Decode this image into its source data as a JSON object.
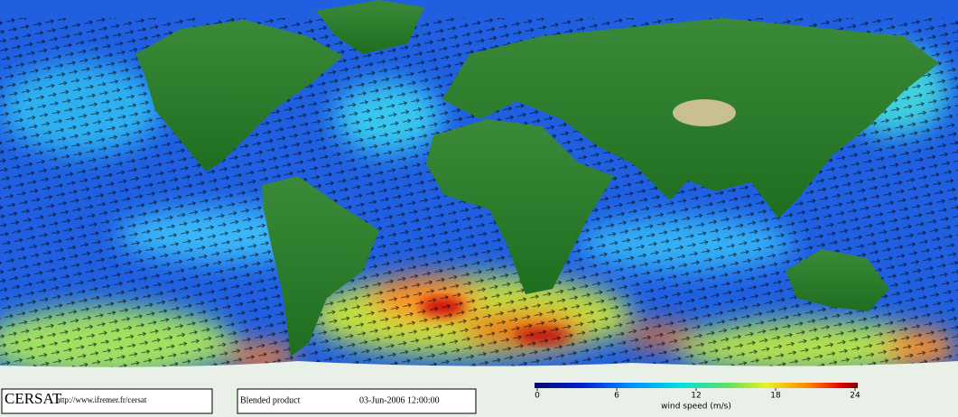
{
  "footer": {
    "logo": "CERSAT",
    "url": "http://www.ifremer.fr/cersat",
    "product": "Blended product",
    "timestamp": "03-Jun-2006 12:00:00"
  },
  "colorbar": {
    "label": "wind speed (m/s)",
    "lim": [
      0,
      24
    ],
    "ticks": [
      0,
      6,
      12,
      18,
      24
    ]
  }
}
